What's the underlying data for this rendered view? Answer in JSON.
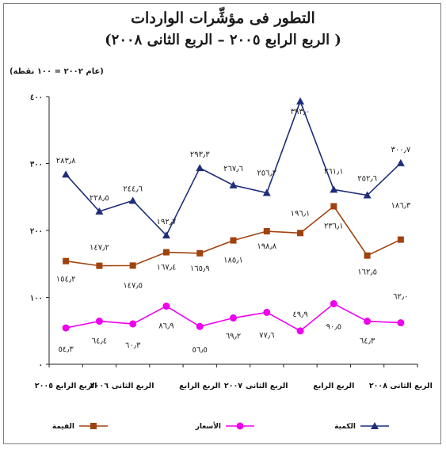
{
  "chart_data": {
    "type": "line",
    "title": "التطور فى مؤشِّرات الواردات",
    "subtitle": "( الربع الرابع ٢٠٠٥ – الربع الثانى ٢٠٠٨)",
    "note": "(عام ٢٠٠٢ = ١٠٠ نقطة)",
    "xlabel": "",
    "ylabel": "",
    "ylim": [
      0,
      400
    ],
    "yticks": [
      0,
      100,
      200,
      300,
      400
    ],
    "ytick_labels": [
      "٠",
      "١٠٠",
      "٢٠٠",
      "٣٠٠",
      "٤٠٠"
    ],
    "grid": false,
    "legend_position": "bottom",
    "categories": [
      "Q4-2005",
      "Q1-2006",
      "Q2-2006",
      "Q3-2006",
      "Q4-2006",
      "Q1-2007",
      "Q2-2007",
      "Q3-2007",
      "Q4-2007",
      "Q1-2008",
      "Q2-2008"
    ],
    "xtick_labels": [
      {
        "text": "الربع الثانى ٢٠٠٨",
        "index": 10
      },
      {
        "text": "الربع الرابع",
        "index": 8
      },
      {
        "text": "الربع الثانى",
        "index": 6
      },
      {
        "text": "٢٠٠٧",
        "index": 5
      },
      {
        "text": "الربع الرابع",
        "index": 4
      },
      {
        "text": "الربع الثانى",
        "index": 2
      },
      {
        "text": "٢٠٠٦",
        "index": 1
      },
      {
        "text": "الربع الرابع ٢٠٠٥",
        "index": 0
      }
    ],
    "series": [
      {
        "name": "الكمية",
        "color": "#1f2e7a",
        "marker": "triangle",
        "values": [
          283.8,
          228.5,
          244.6,
          192.7,
          293.3,
          267.6,
          256.2,
          393.0,
          261.1,
          252.6,
          300.7
        ],
        "labels": [
          "٢٨٣٫٨",
          "٢٢٨٫٥",
          "٢٤٤٫٦",
          "١٩٢٫٧",
          "٢٩٣٫٣",
          "٢٦٧٫٦",
          "٢٥٦٫٢",
          "٣٩٣٫٠",
          "٢٦١٫١",
          "٢٥٢٫٦",
          "٣٠٠٫٧"
        ]
      },
      {
        "name": "القيمة",
        "color": "#a0420e",
        "marker": "square",
        "values": [
          154.2,
          147.2,
          147.5,
          167.4,
          165.9,
          185.1,
          198.8,
          196.1,
          236.1,
          162.5,
          186.3
        ],
        "labels": [
          "١٥٤٫٢",
          "١٤٧٫٢",
          "١٤٧٫٥",
          "١٦٧٫٤",
          "١٦٥٫٩",
          "١٨٥٫١",
          "١٩٨٫٨",
          "١٩٦٫١",
          "٢٣٦٫١",
          "١٦٢٫٥",
          "١٨٦٫٣"
        ]
      },
      {
        "name": "الأسعار",
        "color": "#ee00ee",
        "marker": "circle",
        "values": [
          54.3,
          64.4,
          60.3,
          86.9,
          56.5,
          69.2,
          77.6,
          49.9,
          90.5,
          64.3,
          62.0
        ],
        "labels": [
          "٥٤٫٣",
          "٦٤٫٤",
          "٦٠٫٣",
          "٨٦٫٩",
          "٥٦٫٥",
          "٦٩٫٢",
          "٧٧٫٦",
          "٤٩٫٩",
          "٩٠٫٥",
          "٦٤٫٣",
          "٦٢٫٠"
        ]
      }
    ]
  }
}
